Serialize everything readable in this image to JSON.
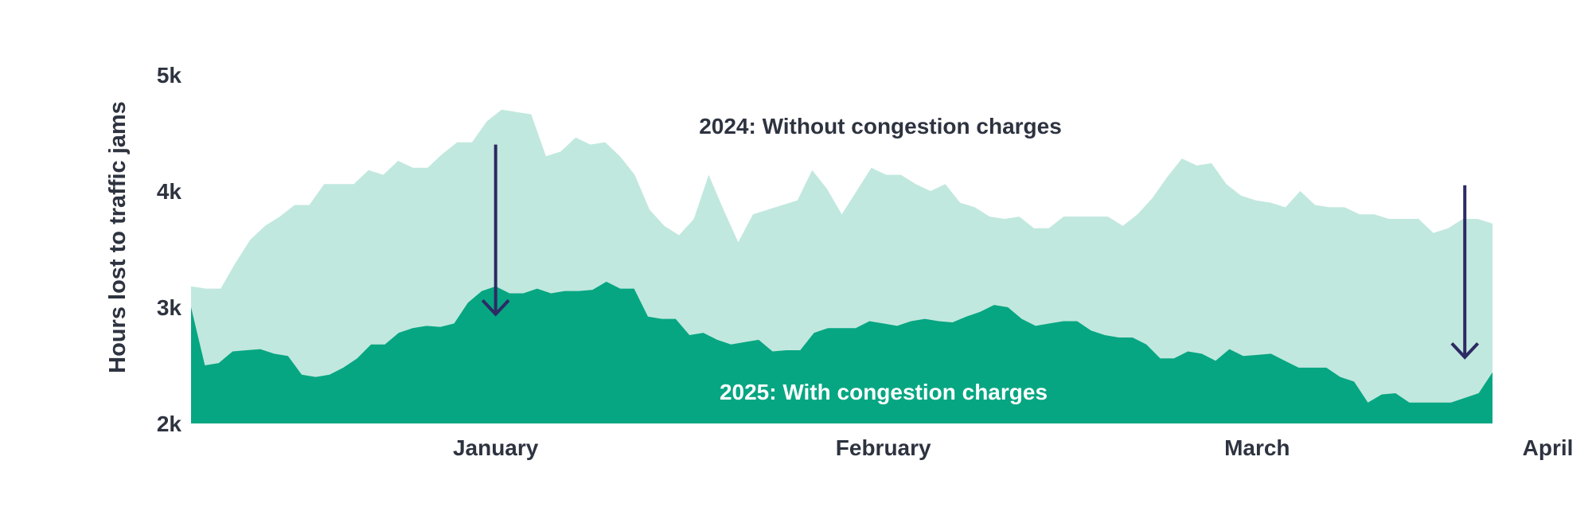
{
  "chart_data": {
    "type": "area",
    "ylabel": "Hours lost to traffic jams",
    "ylim": [
      2000,
      5000
    ],
    "y_ticks": [
      {
        "value": 5000,
        "label": "5k"
      },
      {
        "value": 4000,
        "label": "4k"
      },
      {
        "value": 3000,
        "label": "3k"
      },
      {
        "value": 2000,
        "label": "2k"
      }
    ],
    "x_ticks": [
      {
        "index": 22,
        "label": "January"
      },
      {
        "index": 50,
        "label": "February"
      },
      {
        "index": 77,
        "label": "March"
      },
      {
        "index": 98,
        "label": "April"
      }
    ],
    "grid": false,
    "legend": "none",
    "series": [
      {
        "name": "2024: Without congestion charges",
        "color": "#c1e8de",
        "values": [
          3180,
          3160,
          3160,
          3380,
          3580,
          3700,
          3780,
          3880,
          3880,
          4060,
          4060,
          4060,
          4180,
          4140,
          4260,
          4200,
          4200,
          4320,
          4420,
          4420,
          4600,
          4700,
          4680,
          4660,
          4300,
          4340,
          4460,
          4400,
          4420,
          4300,
          4140,
          3840,
          3700,
          3620,
          3760,
          4140,
          3840,
          3560,
          3800,
          3840,
          3880,
          3920,
          4180,
          4020,
          3800,
          4000,
          4200,
          4140,
          4140,
          4060,
          4000,
          4060,
          3900,
          3860,
          3780,
          3760,
          3780,
          3680,
          3680,
          3780,
          3780,
          3780,
          3780,
          3700,
          3800,
          3940,
          4120,
          4280,
          4220,
          4240,
          4060,
          3960,
          3920,
          3900,
          3860,
          4000,
          3880,
          3860,
          3860,
          3800,
          3800,
          3760,
          3760,
          3760,
          3640,
          3680,
          3760,
          3760,
          3720
        ],
        "values_aligned": true
      },
      {
        "name": "2025: With congestion charges",
        "color": "#06a682",
        "values": [
          3000,
          2500,
          2520,
          2620,
          2630,
          2640,
          2600,
          2580,
          2420,
          2400,
          2420,
          2480,
          2560,
          2680,
          2680,
          2780,
          2820,
          2840,
          2830,
          2860,
          3040,
          3140,
          3180,
          3120,
          3120,
          3160,
          3120,
          3140,
          3140,
          3150,
          3220,
          3160,
          3160,
          2920,
          2900,
          2900,
          2760,
          2780,
          2720,
          2680,
          2700,
          2720,
          2620,
          2630,
          2630,
          2780,
          2820,
          2820,
          2820,
          2880,
          2860,
          2840,
          2880,
          2900,
          2880,
          2870,
          2920,
          2960,
          3020,
          3000,
          2900,
          2840,
          2860,
          2880,
          2880,
          2800,
          2760,
          2740,
          2740,
          2680,
          2560,
          2560,
          2620,
          2600,
          2540,
          2640,
          2580,
          2590,
          2600,
          2540,
          2480,
          2480,
          2480,
          2400,
          2360,
          2180,
          2250,
          2260,
          2180,
          2180,
          2180,
          2180,
          2220,
          2260,
          2440
        ]
      }
    ],
    "annotations": [
      {
        "text": "2024: Without congestion charges",
        "series": 0
      },
      {
        "text": "2025: With congestion charges",
        "series": 1
      }
    ],
    "arrows": [
      {
        "at_index": 22,
        "from": 4400,
        "to": 2940,
        "color": "#2d2a64"
      },
      {
        "at_index": 92,
        "from": 4050,
        "to": 2570,
        "color": "#2d2a64"
      }
    ]
  }
}
